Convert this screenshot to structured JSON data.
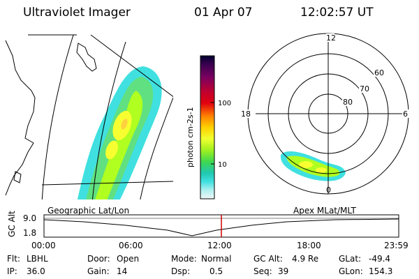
{
  "header": {
    "instrument": "Ultraviolet Imager",
    "date": "01 Apr 07",
    "time": "12:02:57 UT"
  },
  "geo_panel": {
    "label": "Geographic Lat/Lon"
  },
  "colorbar": {
    "unit_label": "photon cm-2s-1",
    "ticks": [
      "100",
      "10"
    ],
    "colors": [
      "#000030",
      "#3a0050",
      "#7a0060",
      "#b00028",
      "#e00010",
      "#ff7000",
      "#ffc000",
      "#f8ff30",
      "#b0ff20",
      "#40e040",
      "#20d0a0",
      "#40e0e0",
      "#a0f0f0",
      "#e8f8f8"
    ]
  },
  "polar_panel": {
    "label": "Apex MLat/MLT",
    "mlt_labels": {
      "top": "12",
      "left": "18",
      "right": "6",
      "bottom": "0"
    },
    "lat_labels": [
      "60",
      "70",
      "80"
    ]
  },
  "timeline": {
    "y_axis_label": "GC Alt",
    "y_ticks": [
      "9.0",
      "1.8"
    ],
    "x_ticks": [
      "00:00",
      "06:00",
      "12:00",
      "18:00",
      "23:59"
    ],
    "current_marker_color": "#d00000"
  },
  "info": {
    "flt_label": "Flt:",
    "flt_value": "LBHL",
    "ip_label": "IP:",
    "ip_value": "36.0",
    "door_label": "Door:",
    "door_value": "Open",
    "gain_label": "Gain:",
    "gain_value": "14",
    "mode_label": "Mode:",
    "mode_value": "Normal",
    "dsp_label": "Dsp:",
    "dsp_value": "0.5",
    "gcalt_label": "GC Alt:",
    "gcalt_value": "4.9 Re",
    "seq_label": "Seq:",
    "seq_value": "39",
    "glat_label": "GLat:",
    "glat_value": "-49.4",
    "glon_label": "GLon:",
    "glon_value": "154.3"
  }
}
